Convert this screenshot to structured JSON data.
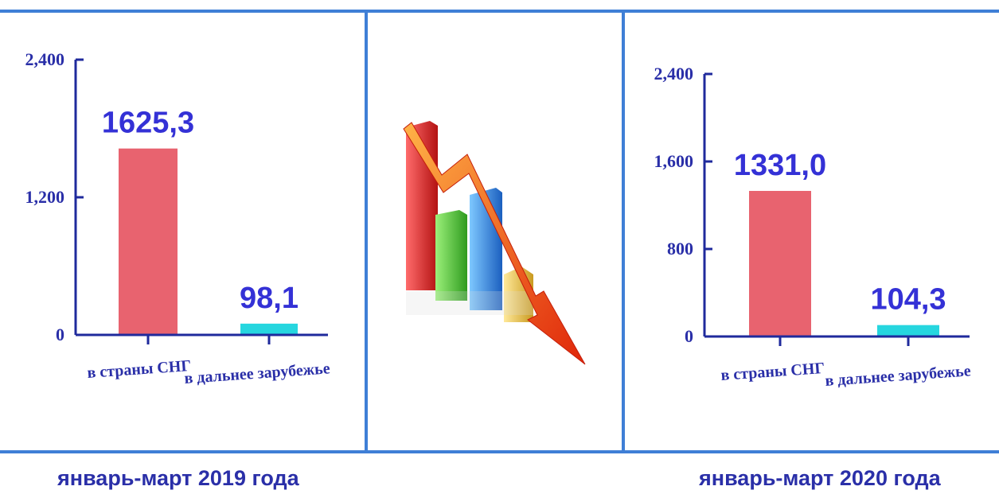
{
  "captions": {
    "left": "январь-март 2019 года",
    "right": "январь-март 2020 года"
  },
  "colors": {
    "cis_bar": "#e8636f",
    "far_abroad_bar": "#26d6df",
    "frame": "#3f7fd6",
    "axis": "#1f2a9c",
    "text": "#2a2fa8"
  },
  "decoration": {
    "icon": "declining-bar-chart-with-arrow-icon"
  },
  "chart_data": [
    {
      "type": "bar",
      "title": "январь-март 2019 года",
      "categories": [
        "в страны СНГ",
        "в дальнее зарубежье"
      ],
      "values": [
        1625.3,
        98.1
      ],
      "value_labels": [
        "1625,3",
        "98,1"
      ],
      "yticks": [
        0,
        1200,
        2400
      ],
      "ytick_labels": [
        "0",
        "1,200",
        "2,400"
      ],
      "ylim": [
        0,
        2400
      ],
      "xlabel": "",
      "ylabel": "",
      "grid": false,
      "legend": "none"
    },
    {
      "type": "bar",
      "title": "январь-март 2020 года",
      "categories": [
        "в страны СНГ",
        "в дальнее зарубежье"
      ],
      "values": [
        1331.0,
        104.3
      ],
      "value_labels": [
        "1331,0",
        "104,3"
      ],
      "yticks": [
        0,
        800,
        1600,
        2400
      ],
      "ytick_labels": [
        "0",
        "800",
        "1,600",
        "2,400"
      ],
      "ylim": [
        0,
        2400
      ],
      "xlabel": "",
      "ylabel": "",
      "grid": false,
      "legend": "none"
    }
  ]
}
